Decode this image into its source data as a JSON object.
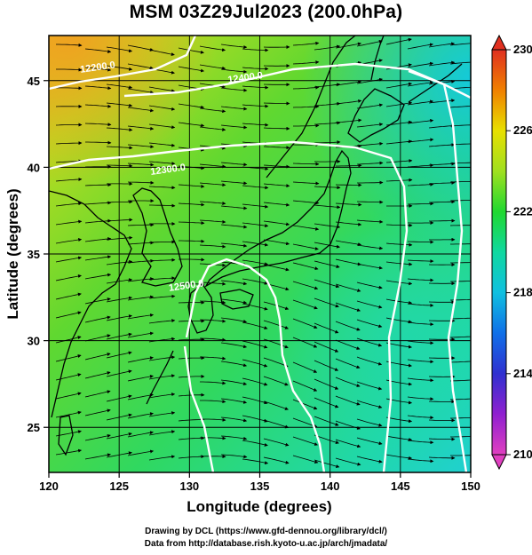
{
  "title": "MSM 03Z29Jul2023 (200.0hPa)",
  "credits": {
    "line1": "Drawing by DCL (https://www.gfd-dennou.org/library/dcl/)",
    "line2": "Data from http://database.rish.kyoto-u.ac.jp/arch/jmadata/"
  },
  "map": {
    "xlabel": "Longitude (degrees)",
    "ylabel": "Latitude (degrees)",
    "xlim": [
      120,
      150
    ],
    "ylim": [
      22.4,
      47.6
    ],
    "x_ticks": [
      120,
      125,
      130,
      135,
      140,
      145,
      150
    ],
    "y_ticks": [
      25,
      30,
      35,
      40,
      45
    ],
    "grid": true,
    "field": "temperature (shaded) with geopotential height contours and wind streamlines",
    "contour_labels": [
      {
        "text": "12200.0",
        "lon": 123.5,
        "lat": 45.6
      },
      {
        "text": "12400.0",
        "lon": 134.0,
        "lat": 45.0
      },
      {
        "text": "12300.0",
        "lon": 128.5,
        "lat": 39.7
      },
      {
        "text": "12500.0",
        "lon": 129.8,
        "lat": 33.0
      }
    ]
  },
  "colorbar": {
    "min": 210,
    "max": 230,
    "tick_labels": [
      "230",
      "226",
      "222",
      "218",
      "214",
      "210"
    ],
    "colors": {
      "210": "#e040c0",
      "212": "#9020d0",
      "214": "#3030d0",
      "216": "#1070e8",
      "218": "#10c0e0",
      "220": "#10d8a0",
      "222": "#20d830",
      "224": "#a0e020",
      "226": "#e8e000",
      "228": "#f08000",
      "230": "#e03020"
    }
  },
  "colors": {
    "contour": "#ffffff",
    "streamline": "#000000",
    "coast": "#000000"
  }
}
